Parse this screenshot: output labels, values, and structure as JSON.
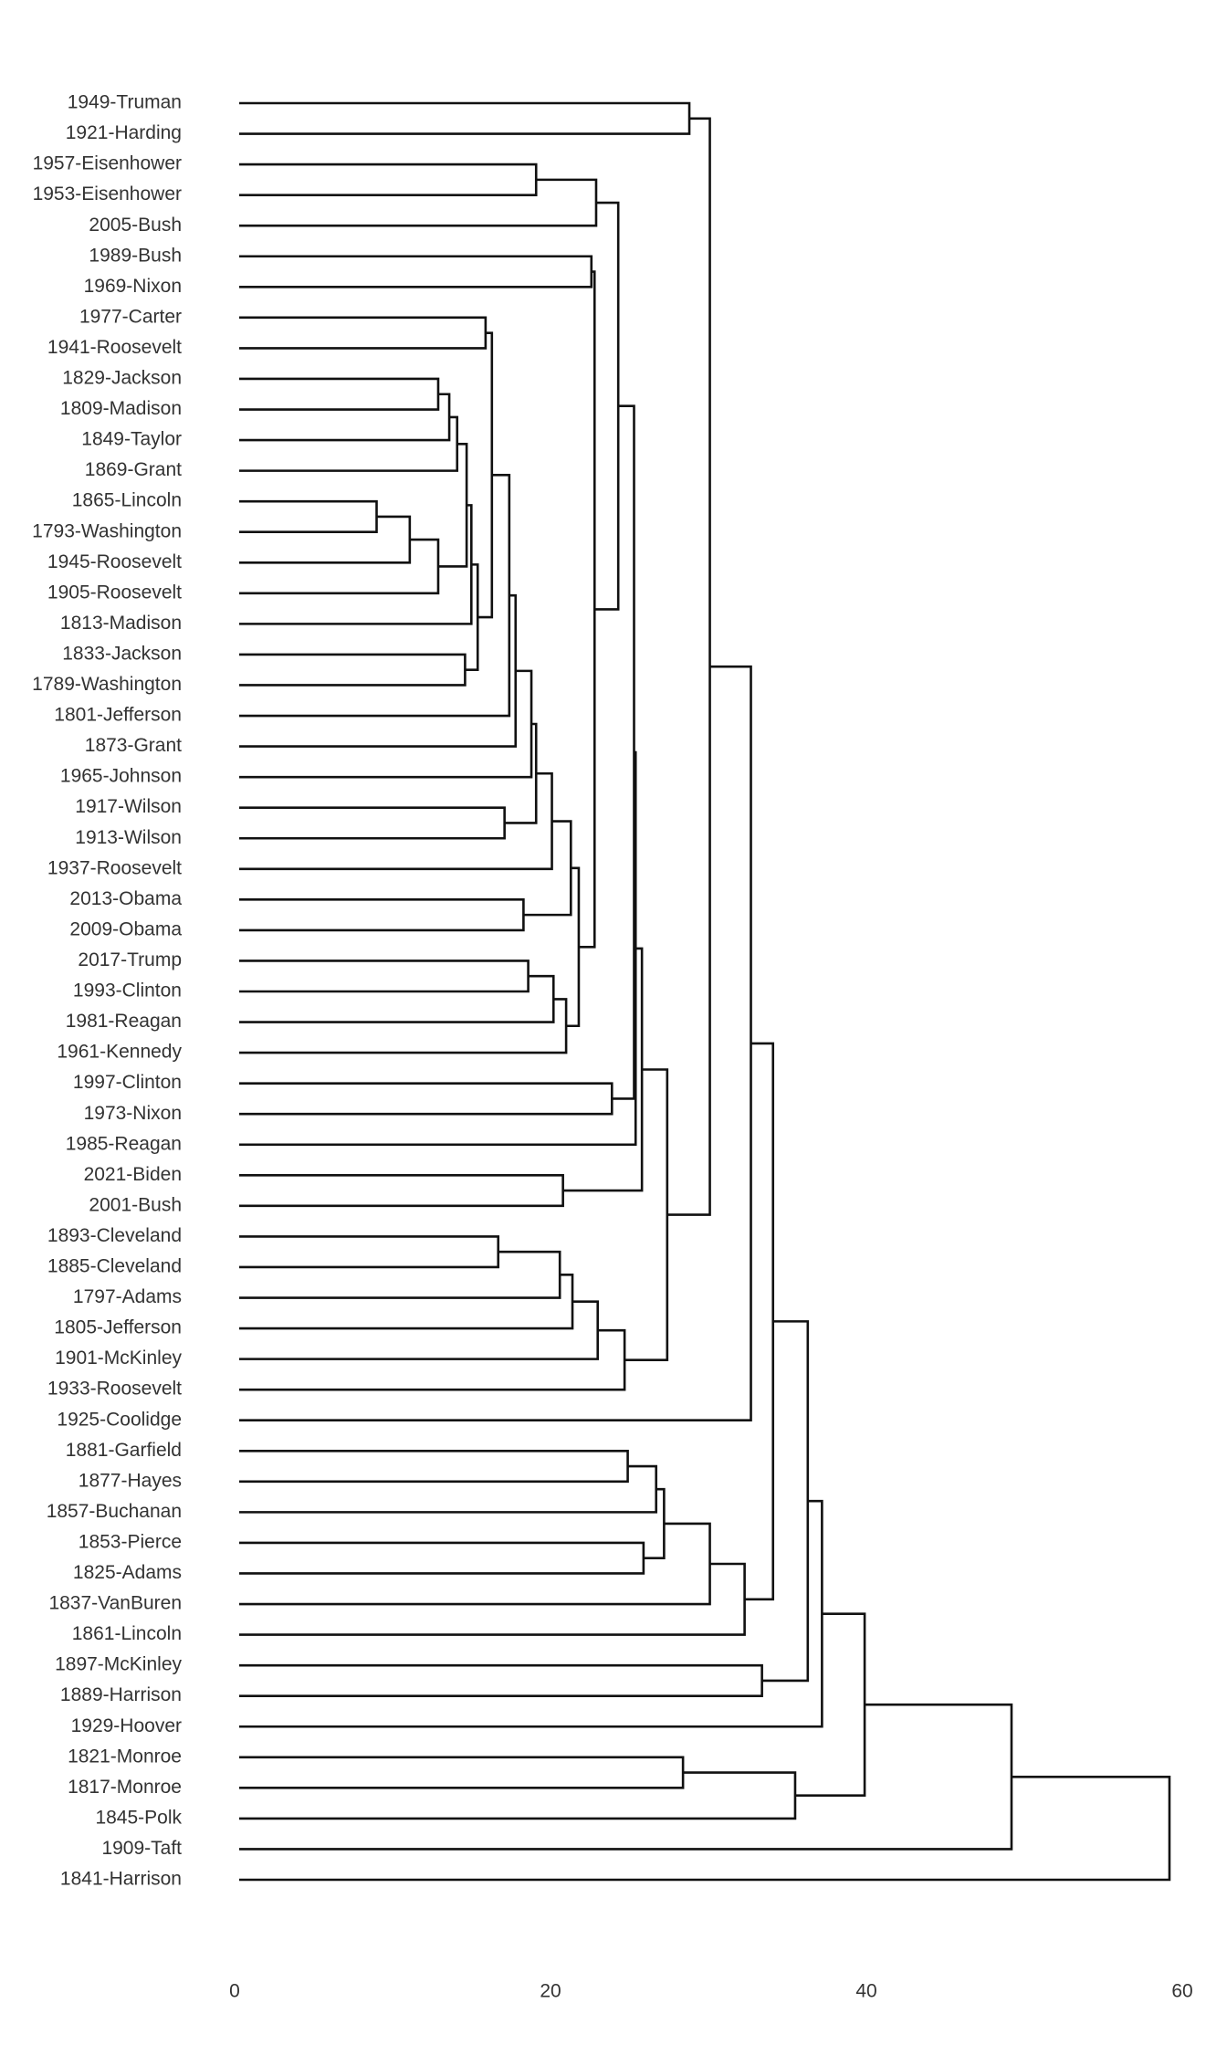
{
  "chart_data": {
    "type": "dendrogram",
    "labels": [
      "1949-Truman",
      "1921-Harding",
      "1957-Eisenhower",
      "1953-Eisenhower",
      "2005-Bush",
      "1989-Bush",
      "1969-Nixon",
      "1977-Carter",
      "1941-Roosevelt",
      "1829-Jackson",
      "1809-Madison",
      "1849-Taylor",
      "1869-Grant",
      "1865-Lincoln",
      "1793-Washington",
      "1945-Roosevelt",
      "1905-Roosevelt",
      "1813-Madison",
      "1833-Jackson",
      "1789-Washington",
      "1801-Jefferson",
      "1873-Grant",
      "1965-Johnson",
      "1917-Wilson",
      "1913-Wilson",
      "1937-Roosevelt",
      "2013-Obama",
      "2009-Obama",
      "2017-Trump",
      "1993-Clinton",
      "1981-Reagan",
      "1961-Kennedy",
      "1997-Clinton",
      "1973-Nixon",
      "1985-Reagan",
      "2021-Biden",
      "2001-Bush",
      "1893-Cleveland",
      "1885-Cleveland",
      "1797-Adams",
      "1805-Jefferson",
      "1901-McKinley",
      "1933-Roosevelt",
      "1925-Coolidge",
      "1881-Garfield",
      "1877-Hayes",
      "1857-Buchanan",
      "1853-Pierce",
      "1825-Adams",
      "1837-VanBuren",
      "1861-Lincoln",
      "1897-McKinley",
      "1889-Harrison",
      "1929-Hoover",
      "1821-Monroe",
      "1817-Monroe",
      "1845-Polk",
      "1909-Taft",
      "1841-Harrison"
    ],
    "merges": [
      [
        0,
        1,
        28.5
      ],
      [
        2,
        3,
        18.8
      ],
      [
        60,
        4,
        22.6
      ],
      [
        5,
        6,
        22.3
      ],
      [
        7,
        8,
        15.6
      ],
      [
        9,
        10,
        12.6
      ],
      [
        64,
        11,
        13.3
      ],
      [
        65,
        12,
        13.8
      ],
      [
        13,
        14,
        8.7
      ],
      [
        67,
        15,
        10.8
      ],
      [
        68,
        16,
        12.6
      ],
      [
        66,
        69,
        14.4
      ],
      [
        70,
        17,
        14.7
      ],
      [
        18,
        19,
        14.3
      ],
      [
        71,
        72,
        15.1
      ],
      [
        63,
        73,
        16.0
      ],
      [
        74,
        20,
        17.1
      ],
      [
        75,
        21,
        17.5
      ],
      [
        76,
        22,
        18.5
      ],
      [
        23,
        24,
        16.8
      ],
      [
        77,
        78,
        18.8
      ],
      [
        79,
        25,
        19.8
      ],
      [
        26,
        27,
        18.0
      ],
      [
        80,
        81,
        21.0
      ],
      [
        28,
        29,
        18.3
      ],
      [
        83,
        30,
        19.9
      ],
      [
        84,
        31,
        20.7
      ],
      [
        82,
        85,
        21.5
      ],
      [
        62,
        86,
        22.5
      ],
      [
        61,
        87,
        24.0
      ],
      [
        32,
        33,
        23.6
      ],
      [
        88,
        89,
        25.0
      ],
      [
        90,
        34,
        25.1
      ],
      [
        35,
        36,
        20.5
      ],
      [
        91,
        92,
        25.5
      ],
      [
        37,
        38,
        16.4
      ],
      [
        94,
        39,
        20.3
      ],
      [
        95,
        40,
        21.1
      ],
      [
        96,
        41,
        22.7
      ],
      [
        97,
        42,
        24.4
      ],
      [
        93,
        98,
        27.1
      ],
      [
        59,
        99,
        29.8
      ],
      [
        100,
        43,
        32.4
      ],
      [
        44,
        45,
        24.6
      ],
      [
        102,
        46,
        26.4
      ],
      [
        47,
        48,
        25.6
      ],
      [
        103,
        104,
        26.9
      ],
      [
        105,
        49,
        29.8
      ],
      [
        106,
        50,
        32.0
      ],
      [
        101,
        107,
        33.8
      ],
      [
        51,
        52,
        33.1
      ],
      [
        108,
        109,
        36.0
      ],
      [
        110,
        53,
        36.9
      ],
      [
        54,
        55,
        28.1
      ],
      [
        112,
        56,
        35.2
      ],
      [
        111,
        113,
        39.6
      ],
      [
        114,
        57,
        48.9
      ],
      [
        115,
        58,
        58.9
      ]
    ],
    "xlim": [
      0,
      60
    ],
    "xticks": [
      0,
      20,
      40,
      60
    ],
    "color": "#111111"
  }
}
